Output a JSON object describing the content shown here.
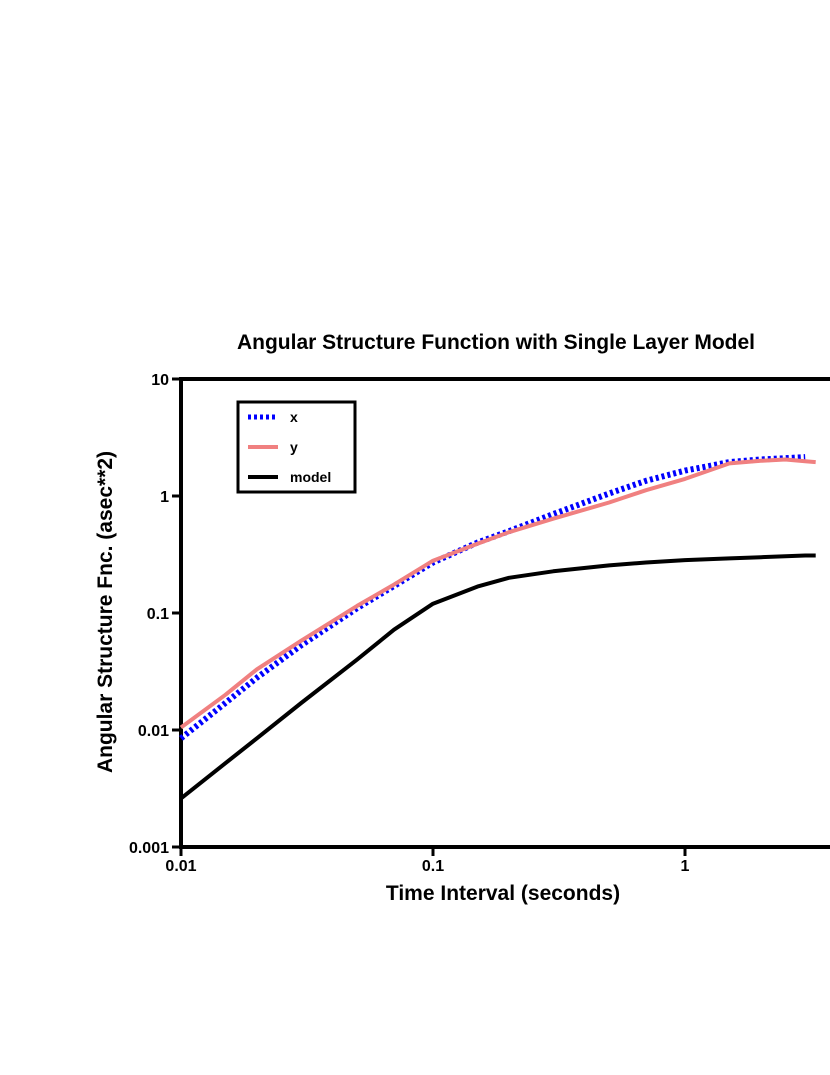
{
  "chart_data": {
    "type": "line",
    "title": "Angular Structure Function with Single Layer Model",
    "xlabel": "Time Interval (seconds)",
    "ylabel": "Angular Structure Fnc. (asec**2)",
    "x_scale": "log",
    "y_scale": "log",
    "xlim": [
      0.01,
      3.6
    ],
    "ylim": [
      0.001,
      10
    ],
    "x_ticks": [
      "0.01",
      "0.1",
      "1"
    ],
    "x_tick_values": [
      0.01,
      0.1,
      1
    ],
    "y_ticks": [
      "0.001",
      "0.01",
      "0.1",
      "1",
      "10"
    ],
    "y_tick_values": [
      0.001,
      0.01,
      0.1,
      1,
      10
    ],
    "grid": false,
    "legend_position": "top-left",
    "series": [
      {
        "name": "x",
        "color": "#0000ff",
        "style": "dashed",
        "points": [
          [
            0.01,
            0.0085
          ],
          [
            0.015,
            0.017
          ],
          [
            0.02,
            0.028
          ],
          [
            0.03,
            0.053
          ],
          [
            0.05,
            0.11
          ],
          [
            0.07,
            0.17
          ],
          [
            0.1,
            0.27
          ],
          [
            0.15,
            0.4
          ],
          [
            0.2,
            0.5
          ],
          [
            0.3,
            0.7
          ],
          [
            0.5,
            1.05
          ],
          [
            0.7,
            1.35
          ],
          [
            1.0,
            1.65
          ],
          [
            1.5,
            1.95
          ],
          [
            2.0,
            2.05
          ],
          [
            3.0,
            2.15
          ]
        ]
      },
      {
        "name": "y",
        "color": "#f08080",
        "style": "solid",
        "points": [
          [
            0.01,
            0.0105
          ],
          [
            0.015,
            0.02
          ],
          [
            0.02,
            0.033
          ],
          [
            0.03,
            0.058
          ],
          [
            0.05,
            0.115
          ],
          [
            0.07,
            0.175
          ],
          [
            0.1,
            0.28
          ],
          [
            0.15,
            0.39
          ],
          [
            0.2,
            0.49
          ],
          [
            0.3,
            0.64
          ],
          [
            0.5,
            0.88
          ],
          [
            0.7,
            1.12
          ],
          [
            1.0,
            1.4
          ],
          [
            1.5,
            1.9
          ],
          [
            2.0,
            2.0
          ],
          [
            2.5,
            2.05
          ],
          [
            3.0,
            1.98
          ],
          [
            3.3,
            1.95
          ]
        ]
      },
      {
        "name": "model",
        "color": "#000000",
        "style": "solid",
        "points": [
          [
            0.01,
            0.0026
          ],
          [
            0.015,
            0.0052
          ],
          [
            0.02,
            0.0085
          ],
          [
            0.03,
            0.017
          ],
          [
            0.05,
            0.04
          ],
          [
            0.07,
            0.072
          ],
          [
            0.1,
            0.12
          ],
          [
            0.15,
            0.168
          ],
          [
            0.2,
            0.2
          ],
          [
            0.3,
            0.227
          ],
          [
            0.5,
            0.255
          ],
          [
            0.7,
            0.27
          ],
          [
            1.0,
            0.283
          ],
          [
            1.5,
            0.293
          ],
          [
            2.0,
            0.3
          ],
          [
            3.0,
            0.31
          ],
          [
            3.3,
            0.31
          ]
        ]
      }
    ]
  }
}
